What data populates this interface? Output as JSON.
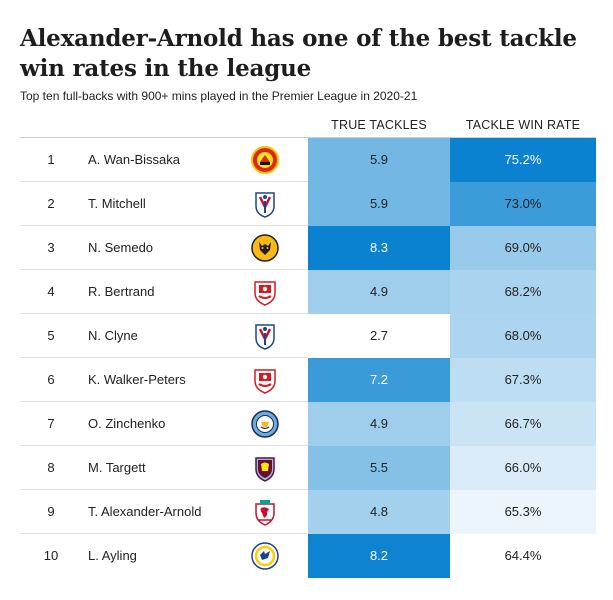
{
  "title": "Alexander-Arnold has one of the best tackle win rates in the league",
  "subtitle": "Top ten full-backs with 900+ mins played in the Premier League in 2020-21",
  "columns": {
    "true_tackles": "TRUE TACKLES",
    "tackle_win_rate": "TACKLE WIN RATE"
  },
  "colors": {
    "scale_low": "#ffffff",
    "scale_high": "#0a82cf",
    "text_dark": "#222222",
    "text_light": "#ffffff"
  },
  "rows": [
    {
      "rank": "1",
      "player": "A. Wan-Bissaka",
      "club_crest": "manchester-united-crest-icon",
      "true_tackles": "5.9",
      "tackle_win_rate": "75.2%"
    },
    {
      "rank": "2",
      "player": "T. Mitchell",
      "club_crest": "crystal-palace-crest-icon",
      "true_tackles": "5.9",
      "tackle_win_rate": "73.0%"
    },
    {
      "rank": "3",
      "player": "N. Semedo",
      "club_crest": "wolves-crest-icon",
      "true_tackles": "8.3",
      "tackle_win_rate": "69.0%"
    },
    {
      "rank": "4",
      "player": "R. Bertrand",
      "club_crest": "southampton-crest-icon",
      "true_tackles": "4.9",
      "tackle_win_rate": "68.2%"
    },
    {
      "rank": "5",
      "player": "N. Clyne",
      "club_crest": "crystal-palace-crest-icon",
      "true_tackles": "2.7",
      "tackle_win_rate": "68.0%"
    },
    {
      "rank": "6",
      "player": "K. Walker-Peters",
      "club_crest": "southampton-crest-icon",
      "true_tackles": "7.2",
      "tackle_win_rate": "67.3%"
    },
    {
      "rank": "7",
      "player": "O. Zinchenko",
      "club_crest": "manchester-city-crest-icon",
      "true_tackles": "4.9",
      "tackle_win_rate": "66.7%"
    },
    {
      "rank": "8",
      "player": "M. Targett",
      "club_crest": "aston-villa-crest-icon",
      "true_tackles": "5.5",
      "tackle_win_rate": "66.0%"
    },
    {
      "rank": "9",
      "player": "T. Alexander-Arnold",
      "club_crest": "liverpool-crest-icon",
      "true_tackles": "4.8",
      "tackle_win_rate": "65.3%"
    },
    {
      "rank": "10",
      "player": "L. Ayling",
      "club_crest": "leeds-united-crest-icon",
      "true_tackles": "8.2",
      "tackle_win_rate": "64.4%"
    }
  ],
  "chart_data": {
    "type": "table",
    "title": "Alexander-Arnold has one of the best tackle win rates in the league",
    "subtitle": "Top ten full-backs with 900+ mins played in the Premier League in 2020-21",
    "columns": [
      "TRUE TACKLES",
      "TACKLE WIN RATE"
    ],
    "categories": [
      "A. Wan-Bissaka",
      "T. Mitchell",
      "N. Semedo",
      "R. Bertrand",
      "N. Clyne",
      "K. Walker-Peters",
      "O. Zinchenko",
      "M. Targett",
      "T. Alexander-Arnold",
      "L. Ayling"
    ],
    "series": [
      {
        "name": "TRUE TACKLES",
        "values": [
          5.9,
          5.9,
          8.3,
          4.9,
          2.7,
          7.2,
          4.9,
          5.5,
          4.8,
          8.2
        ]
      },
      {
        "name": "TACKLE WIN RATE",
        "values": [
          75.2,
          73.0,
          69.0,
          68.2,
          68.0,
          67.3,
          66.7,
          66.0,
          65.3,
          64.4
        ]
      }
    ]
  }
}
